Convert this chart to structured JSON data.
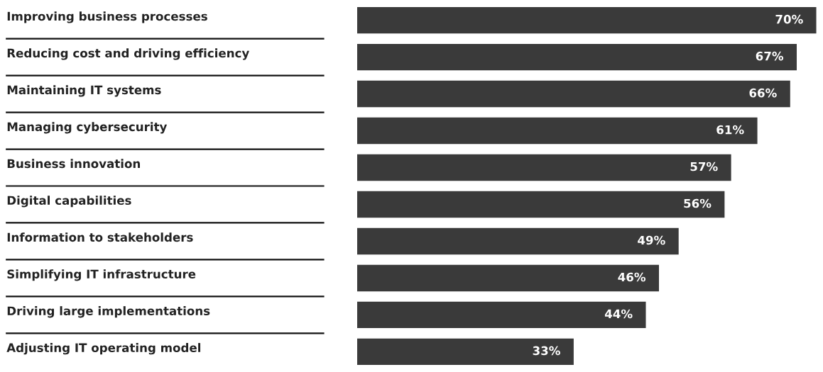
{
  "chart_data": {
    "type": "bar",
    "orientation": "horizontal",
    "categories": [
      "Improving business processes",
      "Reducing cost and driving efficiency",
      "Maintaining IT systems",
      "Managing cybersecurity",
      "Business innovation",
      "Digital capabilities",
      "Information to stakeholders",
      "Simplifying IT infrastructure",
      "Driving large implementations",
      "Adjusting IT operating model"
    ],
    "values": [
      70,
      67,
      66,
      61,
      57,
      56,
      49,
      46,
      44,
      33
    ],
    "value_labels": [
      "70%",
      "67%",
      "66%",
      "61%",
      "57%",
      "56%",
      "49%",
      "46%",
      "44%",
      "33%"
    ],
    "color": "#3a3a3a"
  }
}
